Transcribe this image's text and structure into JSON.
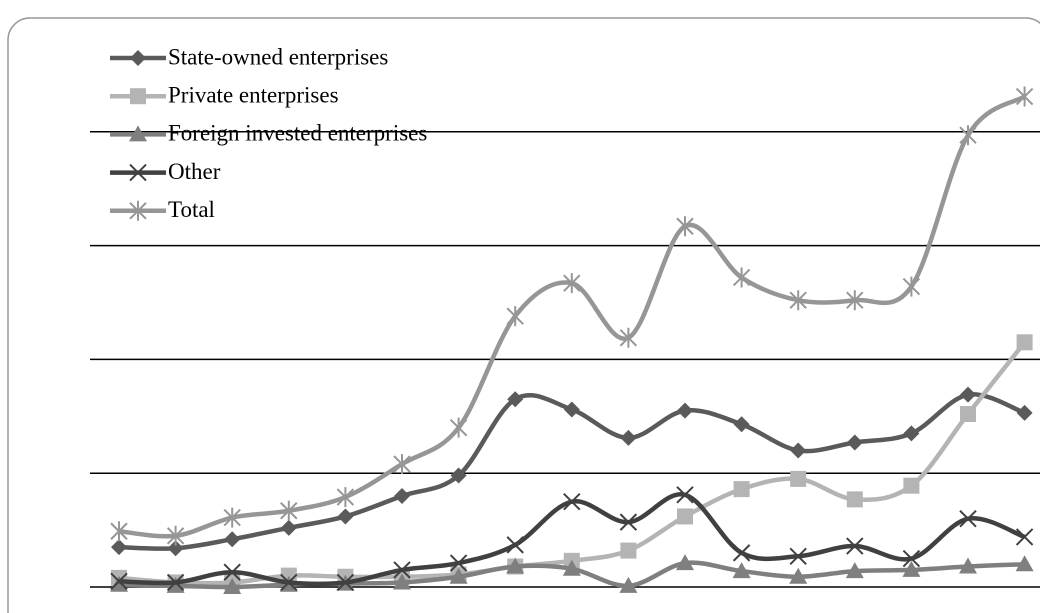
{
  "chart_data": {
    "type": "line",
    "categories": [
      null,
      null,
      null,
      null,
      null,
      null,
      null,
      null,
      null,
      null,
      null,
      null,
      null,
      null,
      null,
      null,
      null
    ],
    "series": [
      {
        "name": "State-owned enterprises",
        "color": "#5a5a5a",
        "marker": "diamond",
        "values": [
          0.35,
          0.34,
          0.42,
          0.52,
          0.62,
          0.8,
          0.98,
          1.65,
          1.56,
          1.31,
          1.55,
          1.43,
          1.2,
          1.27,
          1.35,
          1.69,
          1.53
        ]
      },
      {
        "name": "Private enterprises",
        "color": "#b4b4b4",
        "marker": "square",
        "values": [
          0.08,
          0.04,
          0.04,
          0.1,
          0.09,
          0.09,
          0.11,
          0.18,
          0.23,
          0.32,
          0.62,
          0.86,
          0.95,
          0.77,
          0.89,
          1.52,
          2.15
        ]
      },
      {
        "name": "Foreign invested enterprises",
        "color": "#7f7f7f",
        "marker": "triangle",
        "values": [
          0.02,
          0.01,
          0.0,
          0.02,
          0.03,
          0.04,
          0.09,
          0.18,
          0.16,
          0.01,
          0.21,
          0.14,
          0.09,
          0.14,
          0.15,
          0.18,
          0.2
        ]
      },
      {
        "name": "Other",
        "color": "#404040",
        "marker": "x",
        "values": [
          0.05,
          0.04,
          0.13,
          0.04,
          0.04,
          0.15,
          0.21,
          0.37,
          0.75,
          0.57,
          0.81,
          0.3,
          0.27,
          0.36,
          0.25,
          0.6,
          0.44
        ]
      },
      {
        "name": "Total",
        "color": "#969696",
        "marker": "asterisk",
        "values": [
          0.49,
          0.45,
          0.61,
          0.67,
          0.79,
          1.08,
          1.4,
          2.38,
          2.67,
          2.19,
          3.17,
          2.72,
          2.52,
          2.52,
          2.64,
          3.97,
          4.31
        ]
      }
    ],
    "ylim": [
      0,
      5
    ],
    "yticks": [
      0,
      1,
      2,
      3,
      4
    ],
    "grid": true,
    "smooth": true,
    "legend": "upper left"
  }
}
